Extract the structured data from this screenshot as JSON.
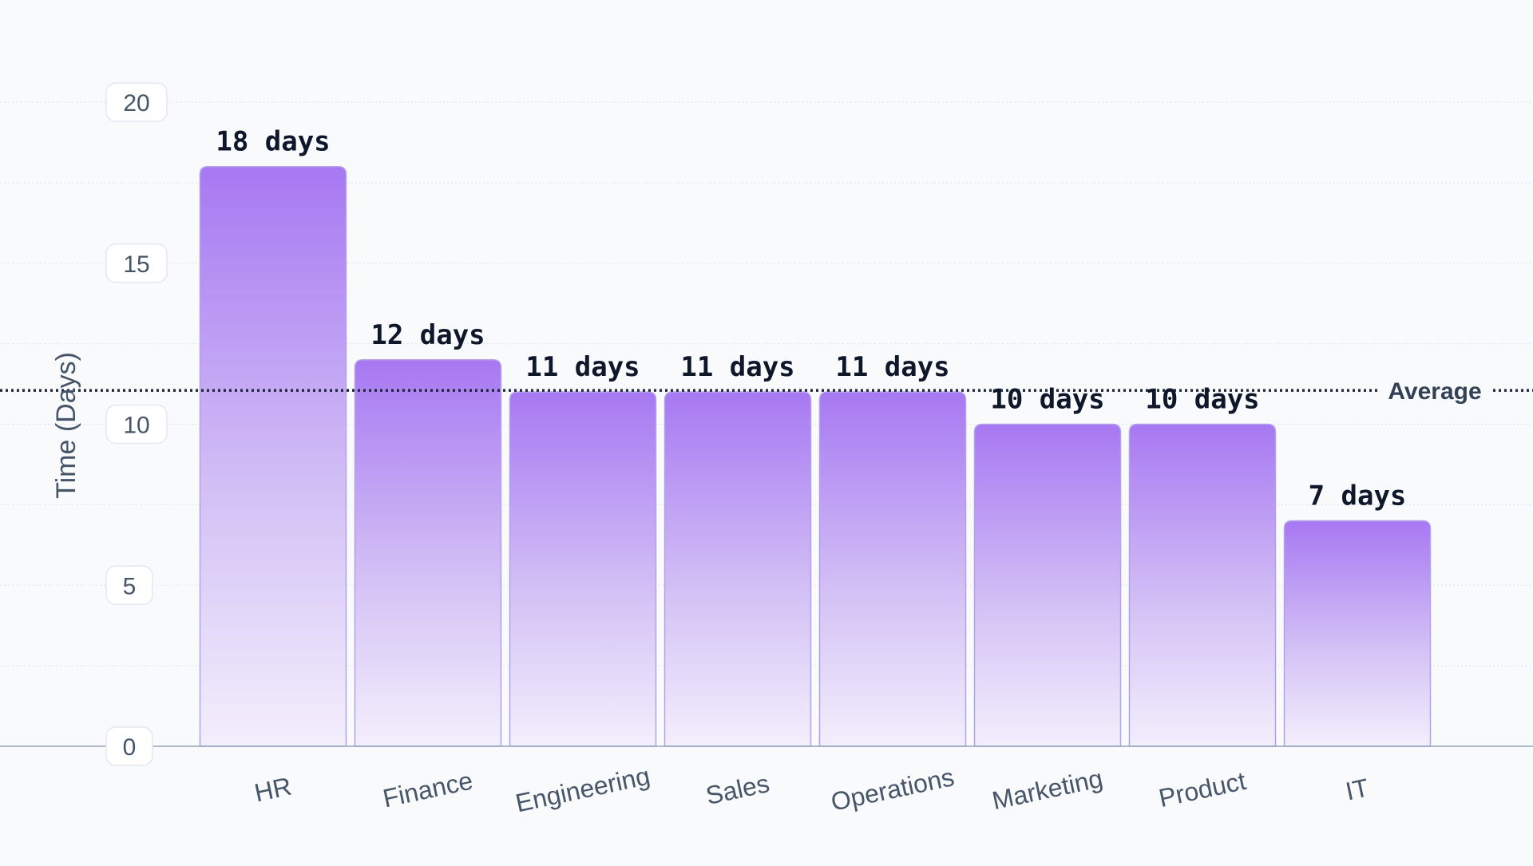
{
  "chart_data": {
    "type": "bar",
    "categories": [
      "HR",
      "Finance",
      "Engineering",
      "Sales",
      "Operations",
      "Marketing",
      "Product",
      "IT"
    ],
    "values": [
      18,
      12,
      11,
      11,
      11,
      10,
      10,
      7
    ],
    "data_labels": [
      "18 days",
      "12 days",
      "11 days",
      "11 days",
      "11 days",
      "10 days",
      "10 days",
      "7 days"
    ],
    "ylabel": "Time (Days)",
    "xlabel": "",
    "title": "",
    "ylim": [
      0,
      20
    ],
    "yticks": [
      0,
      5,
      10,
      15,
      20
    ],
    "average": {
      "label": "Average",
      "value": 11.05
    },
    "grid": true,
    "colors": {
      "bar_top": "#a778f2",
      "bar_bottom": "#f3effc",
      "bar_stroke": "#b4a2e8",
      "avg_line": "#1e293b",
      "axis": "#94a3b8"
    }
  }
}
